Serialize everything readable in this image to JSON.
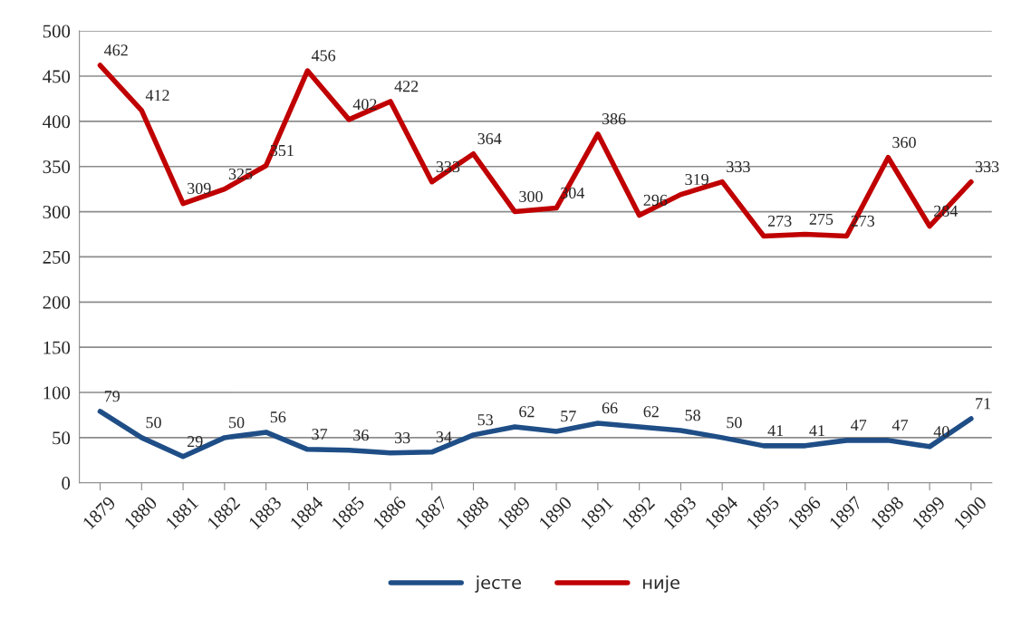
{
  "chart_data": {
    "type": "line",
    "categories": [
      "1879",
      "1880",
      "1881",
      "1882",
      "1883",
      "1884",
      "1885",
      "1886",
      "1887",
      "1888",
      "1889",
      "1890",
      "1891",
      "1892",
      "1893",
      "1894",
      "1895",
      "1896",
      "1897",
      "1898",
      "1899",
      "1900"
    ],
    "series": [
      {
        "name": "јесте",
        "color": "#1f4e87",
        "values": [
          79,
          50,
          29,
          50,
          56,
          37,
          36,
          33,
          34,
          53,
          62,
          57,
          66,
          62,
          58,
          50,
          41,
          41,
          47,
          47,
          40,
          71
        ]
      },
      {
        "name": "није",
        "color": "#c00000",
        "values": [
          462,
          412,
          309,
          325,
          351,
          456,
          402,
          422,
          333,
          364,
          300,
          304,
          386,
          296,
          319,
          333,
          273,
          275,
          273,
          360,
          284,
          333
        ]
      }
    ],
    "ylim": [
      0,
      500
    ],
    "yticks": [
      0,
      50,
      100,
      150,
      200,
      250,
      300,
      350,
      400,
      450,
      500
    ],
    "grid": "y",
    "legend": "bottom",
    "data_labels": true,
    "marker": "none",
    "line_style": "solid"
  }
}
